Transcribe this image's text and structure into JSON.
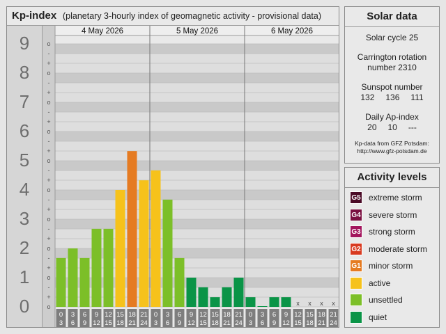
{
  "header": {
    "title": "Kp-index",
    "subtitle": "(planetary 3-hourly index of geomagnetic activity - provisional data)"
  },
  "solar": {
    "title": "Solar data",
    "cycle": "Solar cycle 25",
    "carrington_line1": "Carrington rotation",
    "carrington_line2": "number 2310",
    "sunspot_label": "Sunspot number",
    "sunspot_values": [
      "132",
      "136",
      "111"
    ],
    "ap_label": "Daily Ap-index",
    "ap_values": [
      "20",
      "10",
      "---"
    ],
    "source_line1": "Kp-data from GFZ Potsdam:",
    "source_line2": "http://www.gfz-potsdam.de"
  },
  "levels": {
    "title": "Activity levels",
    "items": [
      {
        "badge": "G5",
        "label": "extreme storm",
        "color": "#4a0a26"
      },
      {
        "badge": "G4",
        "label": "severe storm",
        "color": "#7a1040"
      },
      {
        "badge": "G3",
        "label": "strong storm",
        "color": "#a3155e"
      },
      {
        "badge": "G2",
        "label": "moderate storm",
        "color": "#d83a20"
      },
      {
        "badge": "G1",
        "label": "minor storm",
        "color": "#e57b22"
      },
      {
        "badge": "",
        "label": "active",
        "color": "#f6c21b"
      },
      {
        "badge": "",
        "label": "unsettled",
        "color": "#7cbf28"
      },
      {
        "badge": "",
        "label": "quiet",
        "color": "#0a9447"
      }
    ]
  },
  "chart_data": {
    "type": "bar",
    "title": "Kp-index",
    "ylim": [
      0,
      9
    ],
    "y_ticks": [
      "0",
      "1",
      "2",
      "3",
      "4",
      "5",
      "6",
      "7",
      "8",
      "9"
    ],
    "minor_ticks": [
      "-",
      "o",
      "+"
    ],
    "days": [
      {
        "label": "4 May 2026",
        "values": [
          1.67,
          2.0,
          1.67,
          2.67,
          2.67,
          4.0,
          5.33,
          4.33
        ]
      },
      {
        "label": "5 May 2026",
        "values": [
          4.67,
          3.67,
          1.67,
          1.0,
          0.67,
          0.33,
          0.67,
          1.0
        ]
      },
      {
        "label": "6 May 2026",
        "values": [
          0.33,
          0.0,
          0.33,
          0.33,
          null,
          null,
          null,
          null
        ]
      }
    ],
    "interval_start": [
      "0",
      "3",
      "6",
      "9",
      "12",
      "15",
      "18",
      "21"
    ],
    "interval_end": [
      "3",
      "6",
      "9",
      "12",
      "15",
      "18",
      "21",
      "24"
    ],
    "missing_mark": "x",
    "colors": {
      "quiet": "#0a9447",
      "unsettled": "#7cbf28",
      "active": "#f6c21b",
      "minor_storm": "#e57b22"
    }
  }
}
